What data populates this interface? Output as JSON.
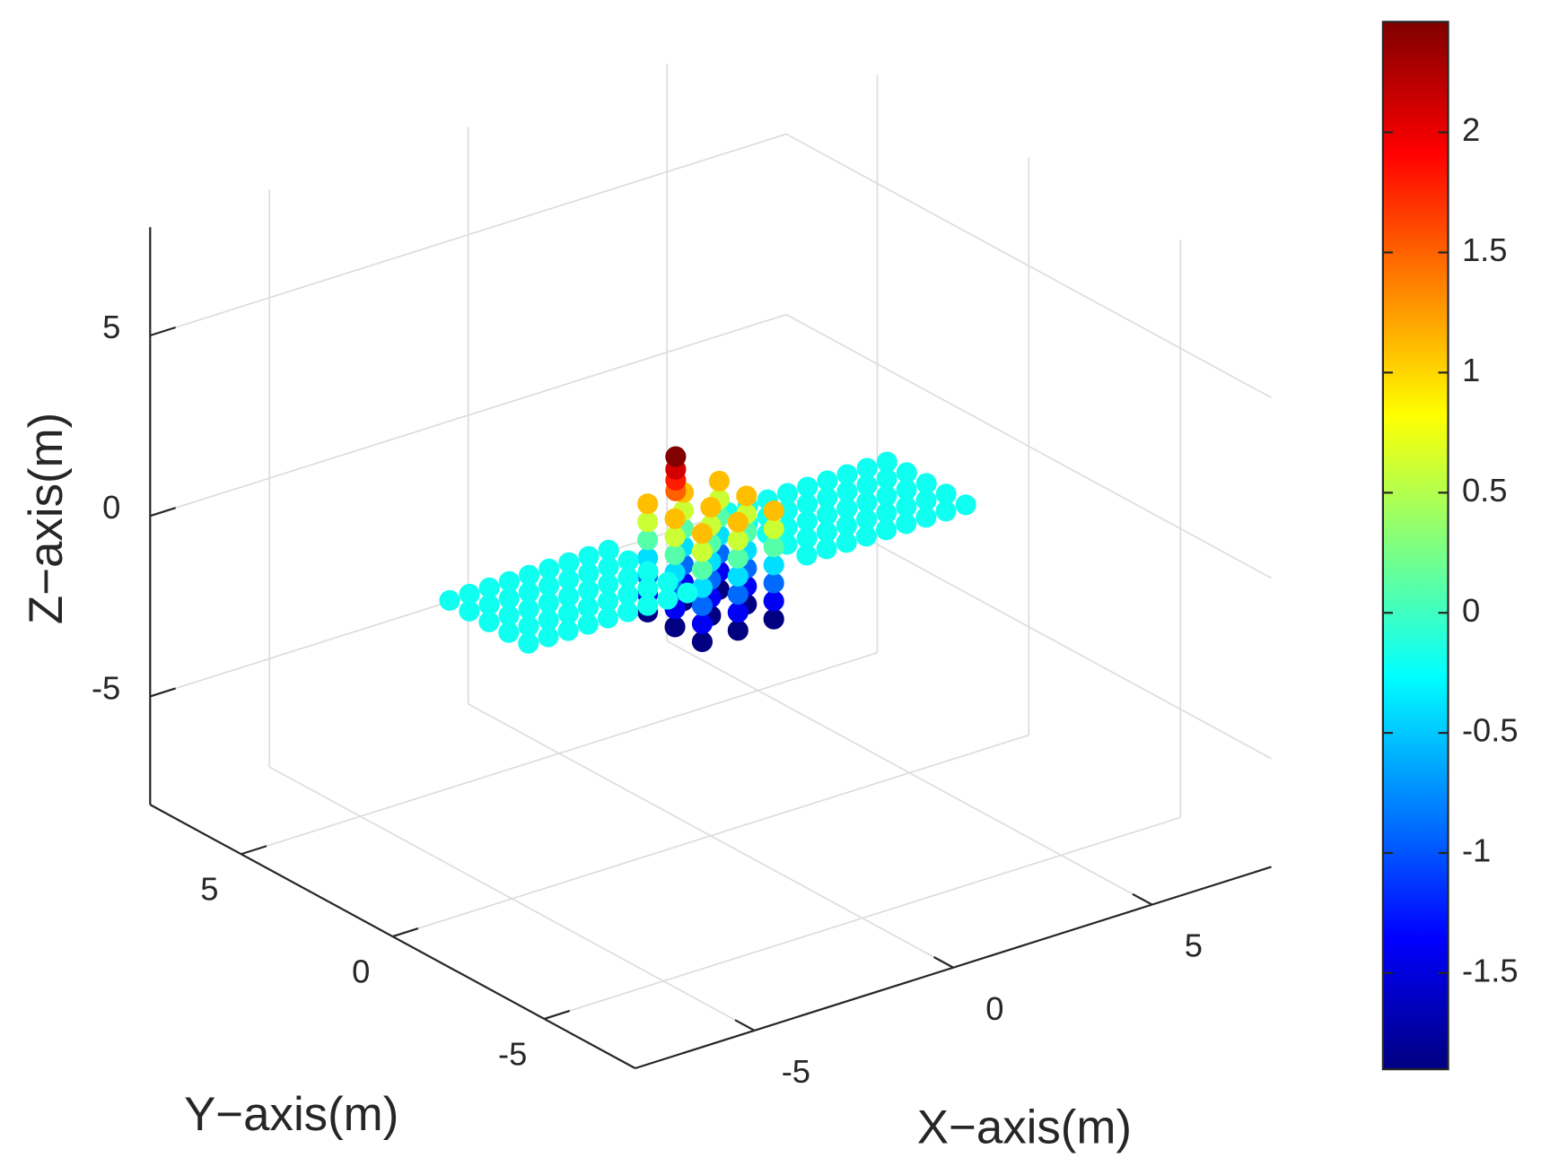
{
  "chart_data": {
    "type": "scatter3d",
    "x_label": "X−axis(m)",
    "y_label": "Y−axis(m)",
    "z_label": "Z−axis(m)",
    "xlim": [
      -8,
      8
    ],
    "ylim": [
      -8,
      8
    ],
    "zlim": [
      -8,
      8
    ],
    "xticks": [
      -5,
      0,
      5
    ],
    "yticks": [
      -5,
      0,
      5
    ],
    "zticks": [
      -5,
      0,
      5
    ],
    "grid": true,
    "colormap": "jet",
    "clim": [
      -1.9,
      2.46
    ],
    "cticks": [
      -1.5,
      -1,
      -0.5,
      0,
      0.5,
      1,
      1.5,
      2
    ],
    "x": [
      5.5,
      5.5,
      5.5,
      5.5,
      5.5,
      5,
      5,
      5,
      5,
      5,
      4.5,
      4.5,
      4.5,
      4.5,
      4.5,
      4,
      4,
      4,
      4,
      4,
      3.5,
      3.5,
      3.5,
      3.5,
      3.5,
      3,
      3,
      3,
      3,
      3,
      2.5,
      2.5,
      2.5,
      2.5,
      2.5,
      2,
      2,
      2,
      2,
      2,
      1.5,
      1.5,
      1.5,
      1.5,
      1.5,
      0.9,
      0.9,
      0.9,
      0,
      0,
      0,
      -0.9,
      -0.9,
      -0.9,
      0.9,
      0.9,
      0.9,
      0,
      0,
      0,
      -0.9,
      -0.9,
      -0.9,
      0.9,
      0.9,
      0.9,
      0,
      0,
      0,
      -0.9,
      -0.9,
      -0.9,
      0.9,
      0.9,
      0.9,
      0,
      0,
      0,
      -0.9,
      -0.9,
      -0.9,
      0.9,
      0.9,
      0.9,
      0,
      0,
      0,
      -0.9,
      -0.9,
      -0.9,
      0.9,
      0.9,
      0.9,
      0,
      0,
      0,
      -0.9,
      -0.9,
      -0.9,
      0.9,
      0.9,
      0.9,
      0,
      0,
      0,
      -0.9,
      -0.9,
      -0.9,
      -0.5,
      -0.5,
      -0.5,
      -0.5,
      -1.5,
      -1.5,
      -1.5,
      -1.5,
      -1.5,
      -2,
      -2,
      -2,
      -2,
      -2,
      -2.5,
      -2.5,
      -2.5,
      -2.5,
      -2.5,
      -3,
      -3,
      -3,
      -3,
      -3,
      -3.5,
      -3.5,
      -3.5,
      -3.5,
      -3.5,
      -4,
      -4,
      -4,
      -4,
      -4,
      -4.5,
      -4.5,
      -4.5,
      -4.5,
      -4.5,
      -5,
      -5,
      -5,
      -5,
      -5,
      -5.5,
      -5.5,
      -5.5,
      -5.5,
      -5.5
    ],
    "y": [
      1.4,
      0.75,
      0.1,
      -0.55,
      -1.2,
      1.4,
      0.75,
      0.1,
      -0.55,
      -1.2,
      1.4,
      0.75,
      0.1,
      -0.55,
      -1.2,
      1.4,
      0.75,
      0.1,
      -0.55,
      -1.2,
      1.4,
      0.75,
      0.1,
      -0.55,
      -1.2,
      1.4,
      0.75,
      0.1,
      -0.55,
      -1.2,
      1.4,
      0.75,
      0.1,
      -0.55,
      -1.2,
      1.4,
      0.75,
      0.1,
      -0.55,
      -1.2,
      1.4,
      0.75,
      0.1,
      -0.55,
      -1.2,
      0.9,
      0,
      -0.9,
      0.9,
      0,
      -0.9,
      0.9,
      0,
      -0.9,
      0.9,
      0,
      -0.9,
      0.9,
      0,
      -0.9,
      0.9,
      0,
      -0.9,
      0.9,
      0,
      -0.9,
      0.9,
      0,
      -0.9,
      0.9,
      0,
      -0.9,
      0.9,
      0,
      -0.9,
      0.9,
      0,
      -0.9,
      0.9,
      0,
      -0.9,
      0.9,
      0,
      -0.9,
      0.9,
      0,
      -0.9,
      0.9,
      0,
      -0.9,
      0.9,
      0,
      -0.9,
      0.9,
      0,
      -0.9,
      0.9,
      0,
      -0.9,
      0.9,
      0,
      -0.9,
      0.9,
      0,
      -0.9,
      0.9,
      0,
      -0.9,
      0.5,
      0.5,
      0.5,
      0.5,
      1.4,
      0.75,
      0.1,
      -0.55,
      -1.2,
      1.4,
      0.75,
      0.1,
      -0.55,
      -1.2,
      1.4,
      0.75,
      0.1,
      -0.55,
      -1.2,
      1.4,
      0.75,
      0.1,
      -0.55,
      -1.2,
      1.4,
      0.75,
      0.1,
      -0.55,
      -1.2,
      1.4,
      0.75,
      0.1,
      -0.55,
      -1.2,
      1.4,
      0.75,
      0.1,
      -0.55,
      -1.2,
      1.4,
      0.75,
      0.1,
      -0.55,
      -1.2,
      1.4,
      0.75,
      0.1,
      -0.55,
      -1.2
    ],
    "z": [
      -0.2,
      -0.2,
      -0.2,
      -0.2,
      -0.2,
      -0.2,
      -0.2,
      -0.2,
      -0.2,
      -0.2,
      -0.2,
      -0.2,
      -0.2,
      -0.2,
      -0.2,
      -0.2,
      -0.2,
      -0.2,
      -0.2,
      -0.2,
      -0.2,
      -0.2,
      -0.2,
      -0.2,
      -0.2,
      -0.2,
      -0.2,
      -0.2,
      -0.2,
      -0.2,
      -0.2,
      -0.2,
      -0.2,
      -0.2,
      -0.2,
      -0.2,
      -0.2,
      -0.2,
      -0.2,
      -0.2,
      -0.2,
      -0.2,
      -0.2,
      -0.2,
      -0.2,
      -1.9,
      -1.9,
      -1.9,
      -1.9,
      -1.9,
      -1.9,
      -1.9,
      -1.9,
      -1.9,
      -1.4,
      -1.4,
      -1.4,
      -1.4,
      -1.4,
      -1.4,
      -1.4,
      -1.4,
      -1.4,
      -0.9,
      -0.9,
      -0.9,
      -0.9,
      -0.9,
      -0.9,
      -0.9,
      -0.9,
      -0.9,
      -0.4,
      -0.4,
      -0.4,
      -0.4,
      -0.4,
      -0.4,
      -0.4,
      -0.4,
      -0.4,
      0.1,
      0.1,
      0.1,
      0.1,
      0.1,
      0.1,
      0.1,
      0.1,
      0.1,
      0.6,
      0.6,
      0.6,
      0.6,
      0.6,
      0.6,
      0.6,
      0.6,
      0.6,
      1.1,
      1.1,
      1.1,
      1.1,
      1.1,
      1.1,
      1.1,
      1.1,
      1.1,
      1.5,
      1.8,
      2.1,
      2.45,
      -0.2,
      -0.2,
      -0.2,
      -0.2,
      -0.2,
      -0.2,
      -0.2,
      -0.2,
      -0.2,
      -0.2,
      -0.2,
      -0.2,
      -0.2,
      -0.2,
      -0.2,
      -0.2,
      -0.2,
      -0.2,
      -0.2,
      -0.2,
      -0.2,
      -0.2,
      -0.2,
      -0.2,
      -0.2,
      -0.2,
      -0.2,
      -0.2,
      -0.2,
      -0.2,
      -0.2,
      -0.2,
      -0.2,
      -0.2,
      -0.2,
      -0.2,
      -0.2,
      -0.2,
      -0.2,
      -0.2,
      -0.2,
      -0.2,
      -0.2,
      -0.2,
      -0.2
    ]
  }
}
